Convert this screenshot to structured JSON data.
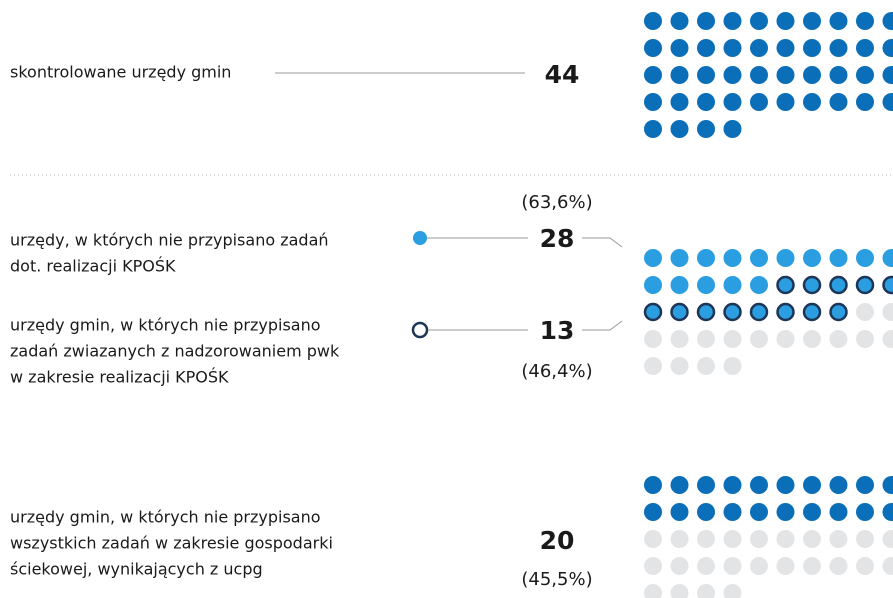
{
  "total": {
    "label": "skontrolowane urzędy gmin",
    "value": 44
  },
  "groups": [
    {
      "lines": [
        "urzędy, w których nie przypisano zadań",
        "dot. realizacji KPOŚK"
      ],
      "value": 28,
      "share": "(63,6%)"
    },
    {
      "lines": [
        "urzędy gmin, w których nie przypisano",
        "zadań zwiazanych z nadzorowaniem pwk",
        "w zakresie realizacji KPOŚK"
      ],
      "value": 13,
      "share": "(46,4%)"
    },
    {
      "lines": [
        "urzędy gmin, w których nie przypisano",
        "wszystkich zadań w zakresie gospodarki",
        "ściekowej, wynikających z ucpg"
      ],
      "value": 20,
      "share": "(45,5%)"
    }
  ]
}
